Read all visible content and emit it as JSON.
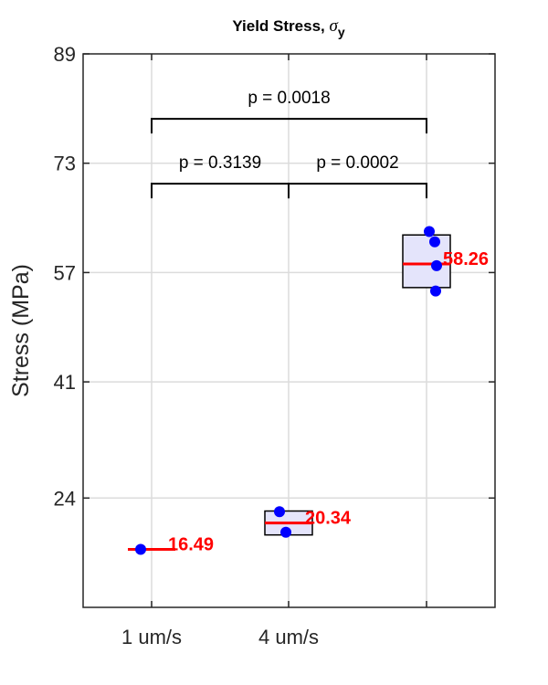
{
  "chart_data": {
    "type": "box",
    "title": "Yield Stress, ",
    "title_symbol": "σ",
    "title_subscript": "y",
    "ylabel": "Stress (MPa)",
    "xlabel": "",
    "ylim": [
      8,
      89
    ],
    "yticks": [
      24,
      41,
      57,
      73,
      89
    ],
    "grid": true,
    "categories": [
      "1 um/s",
      "4 um/s",
      ""
    ],
    "groups": [
      {
        "category": "1 um/s",
        "median": 16.49,
        "q1": 16.49,
        "q3": 16.49,
        "points": [
          16.49
        ],
        "median_label": "16.49"
      },
      {
        "category": "4 um/s",
        "median": 20.34,
        "q1": 18.6,
        "q3": 22.1,
        "points": [
          22.0,
          19.0
        ],
        "median_label": "20.34"
      },
      {
        "category": "",
        "median": 58.26,
        "q1": 54.8,
        "q3": 62.5,
        "points": [
          63.0,
          61.5,
          58.0,
          54.3
        ],
        "median_label": "58.26"
      }
    ],
    "comparisons": [
      {
        "from": 0,
        "to": 1,
        "label": "p = 0.3139",
        "level": 70
      },
      {
        "from": 1,
        "to": 2,
        "label": "p = 0.0002",
        "level": 70
      },
      {
        "from": 0,
        "to": 2,
        "label": "p = 0.0018",
        "level": 79.5
      }
    ],
    "colors": {
      "box_fill": "#e4e4fb",
      "median": "#ff0000",
      "points": "#0000ff",
      "label": "#ff0000"
    }
  }
}
